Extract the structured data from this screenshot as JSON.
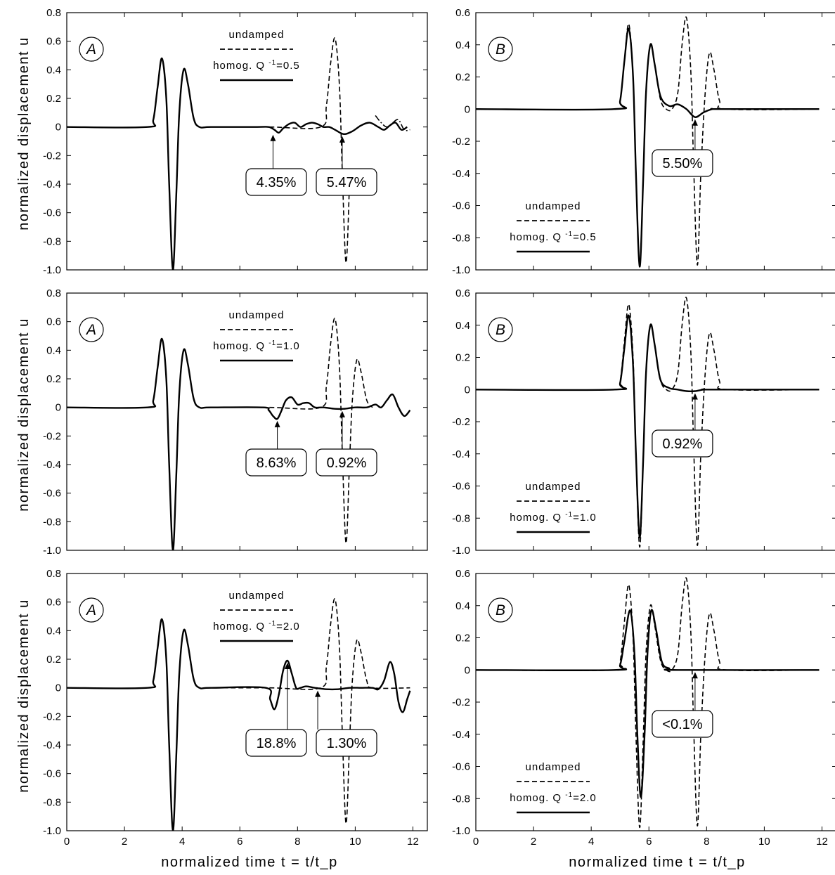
{
  "figure": {
    "xlabel_left": "normalized time t = t/t_p",
    "xlabel_right": "normalized time t = t/t_p",
    "ylabel": "normalized displacement u"
  },
  "chart_data": [
    {
      "type": "line",
      "panel": "A",
      "row": 1,
      "xlim": [
        0,
        12.5
      ],
      "ylim": [
        -1.0,
        0.8
      ],
      "xticks": [
        0,
        2,
        4,
        6,
        8,
        10,
        12
      ],
      "yticks": [
        0.8,
        0.6,
        0.4,
        0.2,
        0,
        -0.2,
        -0.4,
        -0.6,
        -0.8,
        -1.0
      ],
      "ytick_labels": [
        "0.8",
        "0.6",
        "0.4",
        "0.2",
        "0",
        "-0.2",
        "-0.4",
        "-0.6",
        "-0.8",
        "-1.0"
      ],
      "legend": {
        "undamped": "undamped",
        "damped": "homog. Q",
        "sup": "-1",
        "value": "=0.5",
        "placement": "top-center"
      },
      "series": [
        {
          "name": "undamped",
          "style": "dashed",
          "x": [
            0,
            2.8,
            3.0,
            3.15,
            3.3,
            3.45,
            3.55,
            3.68,
            3.8,
            3.9,
            4.05,
            4.2,
            4.4,
            4.6,
            5.0,
            7.0,
            8.8,
            9.0,
            9.15,
            9.3,
            9.45,
            9.55,
            9.68,
            9.8
          ],
          "y": [
            0,
            0,
            0.05,
            0.28,
            0.48,
            0.2,
            -0.4,
            -1.0,
            -0.45,
            0.1,
            0.4,
            0.3,
            0.06,
            0,
            0,
            0,
            0,
            0.15,
            0.45,
            0.62,
            0.3,
            -0.3,
            -0.95,
            -0.4
          ]
        },
        {
          "name": "damped",
          "style": "solid",
          "x": [
            0,
            2.8,
            3.0,
            3.15,
            3.3,
            3.45,
            3.55,
            3.68,
            3.8,
            3.9,
            4.05,
            4.2,
            4.4,
            4.6,
            5.0,
            6.6,
            7.0,
            7.2,
            7.35,
            7.5,
            7.7,
            7.9,
            8.1,
            8.3,
            8.5,
            8.7,
            8.9,
            9.1,
            9.3,
            9.6,
            9.9,
            10.2,
            10.5,
            10.8,
            11.0,
            11.2,
            11.4,
            11.6,
            11.8
          ],
          "y": [
            0,
            0,
            0.05,
            0.28,
            0.48,
            0.2,
            -0.4,
            -1.0,
            -0.45,
            0.1,
            0.4,
            0.3,
            0.06,
            0,
            0,
            0,
            0,
            -0.02,
            -0.04,
            -0.01,
            0.02,
            0.03,
            0.0,
            0.02,
            0.03,
            0.02,
            0.0,
            0.0,
            -0.02,
            -0.05,
            -0.03,
            0.01,
            0.03,
            0.0,
            -0.02,
            0.01,
            0.03,
            -0.02,
            0
          ]
        },
        {
          "name": "",
          "style": "dashdot",
          "x": [
            10.7,
            10.9,
            11.1,
            11.3,
            11.5,
            11.7,
            11.9
          ],
          "y": [
            0.08,
            0.03,
            0.0,
            0.03,
            0.05,
            -0.02,
            -0.02
          ]
        }
      ],
      "callouts": [
        {
          "text": "4.35%",
          "x": 7.15,
          "y": -0.04
        },
        {
          "text": "5.47%",
          "x": 9.55,
          "y": -0.05
        }
      ]
    },
    {
      "type": "line",
      "panel": "B",
      "row": 1,
      "xlim": [
        0,
        12.5
      ],
      "ylim": [
        -1.0,
        0.6
      ],
      "xticks": [
        0,
        2,
        4,
        6,
        8,
        10,
        12
      ],
      "yticks": [
        0.6,
        0.4,
        0.2,
        0,
        -0.2,
        -0.4,
        -0.6,
        -0.8,
        -1.0
      ],
      "ytick_labels": [
        "0.6",
        "0.4",
        "0.2",
        "0",
        "-0.2",
        "-0.4",
        "-0.6",
        "-0.8",
        "-1.0"
      ],
      "legend": {
        "undamped": "undamped",
        "damped": "homog. Q",
        "sup": "-1",
        "value": "=0.5",
        "placement": "bottom-left"
      },
      "series": [
        {
          "name": "undamped",
          "style": "dashed",
          "x": [
            0,
            4.8,
            5.0,
            5.15,
            5.3,
            5.45,
            5.55,
            5.68,
            5.8,
            5.9,
            6.05,
            6.2,
            6.4,
            6.6,
            6.8,
            7.0,
            7.15,
            7.3,
            7.45,
            7.55,
            7.68,
            7.8,
            7.95,
            8.1,
            8.25,
            8.45,
            8.7,
            11.9
          ],
          "y": [
            0,
            0,
            0.05,
            0.3,
            0.53,
            0.2,
            -0.4,
            -0.98,
            -0.45,
            0.1,
            0.4,
            0.28,
            0.06,
            0.0,
            0.0,
            0.1,
            0.4,
            0.57,
            0.25,
            -0.35,
            -0.97,
            -0.4,
            0.1,
            0.35,
            0.25,
            0.05,
            0,
            0
          ]
        },
        {
          "name": "damped",
          "style": "solid",
          "x": [
            0,
            4.8,
            5.0,
            5.15,
            5.3,
            5.45,
            5.55,
            5.68,
            5.8,
            5.9,
            6.05,
            6.2,
            6.4,
            6.7,
            7.0,
            7.3,
            7.6,
            7.9,
            8.2,
            8.5,
            11.9
          ],
          "y": [
            0,
            0,
            0.05,
            0.3,
            0.5,
            0.2,
            -0.4,
            -0.98,
            -0.45,
            0.1,
            0.4,
            0.28,
            0.08,
            0.02,
            0.03,
            0.0,
            -0.05,
            -0.02,
            0.0,
            0,
            0
          ]
        }
      ],
      "callouts": [
        {
          "text": "5.50%",
          "x": 7.6,
          "y": -0.05
        }
      ]
    },
    {
      "type": "line",
      "panel": "A",
      "row": 2,
      "xlim": [
        0,
        12.5
      ],
      "ylim": [
        -1.0,
        0.8
      ],
      "xticks": [
        0,
        2,
        4,
        6,
        8,
        10,
        12
      ],
      "yticks": [
        0.8,
        0.6,
        0.4,
        0.2,
        0,
        -0.2,
        -0.4,
        -0.6,
        -0.8,
        -1.0
      ],
      "ytick_labels": [
        "0.8",
        "0.6",
        "0.4",
        "0.2",
        "0",
        "-0.2",
        "-0.4",
        "-0.6",
        "-0.8",
        "-1.0"
      ],
      "legend": {
        "undamped": "undamped",
        "damped": "homog. Q",
        "sup": "-1",
        "value": "=1.0",
        "placement": "top-center"
      },
      "series": [
        {
          "name": "undamped",
          "style": "dashed",
          "x": [
            0,
            2.8,
            3.0,
            3.15,
            3.3,
            3.45,
            3.55,
            3.68,
            3.8,
            3.9,
            4.05,
            4.2,
            4.4,
            4.6,
            5.0,
            7.0,
            8.8,
            9.0,
            9.15,
            9.3,
            9.45,
            9.55,
            9.68,
            9.8,
            9.9,
            10.05,
            10.2,
            10.4,
            10.6
          ],
          "y": [
            0,
            0,
            0.05,
            0.28,
            0.48,
            0.2,
            -0.4,
            -1.0,
            -0.45,
            0.1,
            0.4,
            0.3,
            0.06,
            0,
            0,
            0,
            0,
            0.15,
            0.45,
            0.62,
            0.3,
            -0.3,
            -0.95,
            -0.4,
            0.05,
            0.33,
            0.25,
            0.05,
            0.0
          ]
        },
        {
          "name": "damped",
          "style": "solid",
          "x": [
            0,
            2.8,
            3.0,
            3.15,
            3.3,
            3.45,
            3.55,
            3.68,
            3.8,
            3.9,
            4.05,
            4.2,
            4.4,
            4.6,
            5.0,
            6.8,
            7.0,
            7.15,
            7.3,
            7.45,
            7.6,
            7.8,
            8.0,
            8.2,
            8.4,
            8.6,
            8.9,
            9.3,
            9.6,
            10.0,
            10.4,
            10.7,
            10.9,
            11.1,
            11.3,
            11.5,
            11.7,
            11.9
          ],
          "y": [
            0,
            0,
            0.05,
            0.28,
            0.48,
            0.2,
            -0.4,
            -1.0,
            -0.45,
            0.1,
            0.4,
            0.3,
            0.06,
            0,
            0,
            0,
            -0.02,
            -0.06,
            -0.08,
            -0.02,
            0.05,
            0.07,
            0.02,
            0.03,
            0.03,
            0.0,
            0.0,
            -0.01,
            -0.01,
            0.0,
            0.0,
            0.02,
            0.0,
            0.05,
            0.09,
            0.0,
            -0.06,
            -0.02
          ]
        }
      ],
      "callouts": [
        {
          "text": "8.63%",
          "x": 7.3,
          "y": -0.08
        },
        {
          "text": "0.92%",
          "x": 9.55,
          "y": -0.01
        }
      ]
    },
    {
      "type": "line",
      "panel": "B",
      "row": 2,
      "xlim": [
        0,
        12.5
      ],
      "ylim": [
        -1.0,
        0.6
      ],
      "xticks": [
        0,
        2,
        4,
        6,
        8,
        10,
        12
      ],
      "yticks": [
        0.6,
        0.4,
        0.2,
        0,
        -0.2,
        -0.4,
        -0.6,
        -0.8,
        -1.0
      ],
      "ytick_labels": [
        "0.6",
        "0.4",
        "0.2",
        "0",
        "-0.2",
        "-0.4",
        "-0.6",
        "-0.8",
        "-1.0"
      ],
      "legend": {
        "undamped": "undamped",
        "damped": "homog. Q",
        "sup": "-1",
        "value": "=1.0",
        "placement": "bottom-left"
      },
      "series": [
        {
          "name": "undamped",
          "style": "dashed",
          "x": [
            0,
            4.8,
            5.0,
            5.15,
            5.3,
            5.45,
            5.55,
            5.68,
            5.8,
            5.9,
            6.05,
            6.2,
            6.4,
            6.6,
            6.8,
            7.0,
            7.15,
            7.3,
            7.45,
            7.55,
            7.68,
            7.8,
            7.95,
            8.1,
            8.25,
            8.45,
            8.7,
            11.9
          ],
          "y": [
            0,
            0,
            0.05,
            0.3,
            0.53,
            0.2,
            -0.4,
            -0.98,
            -0.45,
            0.1,
            0.4,
            0.28,
            0.06,
            0.0,
            0.0,
            0.1,
            0.4,
            0.57,
            0.25,
            -0.35,
            -0.97,
            -0.4,
            0.1,
            0.35,
            0.25,
            0.05,
            0,
            0
          ]
        },
        {
          "name": "damped",
          "style": "solid",
          "x": [
            0,
            4.8,
            5.0,
            5.15,
            5.3,
            5.45,
            5.55,
            5.68,
            5.8,
            5.9,
            6.05,
            6.2,
            6.4,
            6.7,
            7.0,
            7.3,
            7.6,
            7.9,
            8.2,
            11.9
          ],
          "y": [
            0,
            0,
            0.04,
            0.26,
            0.46,
            0.15,
            -0.4,
            -0.92,
            -0.45,
            0.1,
            0.4,
            0.28,
            0.06,
            0.01,
            0.0,
            -0.01,
            -0.01,
            0.0,
            0,
            0
          ]
        }
      ],
      "callouts": [
        {
          "text": "0.92%",
          "x": 7.6,
          "y": -0.01
        }
      ]
    },
    {
      "type": "line",
      "panel": "A",
      "row": 3,
      "xlim": [
        0,
        12.5
      ],
      "ylim": [
        -1.0,
        0.8
      ],
      "xticks": [
        0,
        2,
        4,
        6,
        8,
        10,
        12
      ],
      "yticks": [
        0.8,
        0.6,
        0.4,
        0.2,
        0,
        -0.2,
        -0.4,
        -0.6,
        -0.8,
        -1.0
      ],
      "ytick_labels": [
        "0.8",
        "0.6",
        "0.4",
        "0.2",
        "0",
        "-0.2",
        "-0.4",
        "-0.6",
        "-0.8",
        "-1.0"
      ],
      "legend": {
        "undamped": "undamped",
        "damped": "homog. Q",
        "sup": "-1",
        "value": "=2.0",
        "placement": "top-center"
      },
      "series": [
        {
          "name": "undamped",
          "style": "dashed",
          "x": [
            0,
            2.8,
            3.0,
            3.15,
            3.3,
            3.45,
            3.55,
            3.68,
            3.8,
            3.9,
            4.05,
            4.2,
            4.4,
            4.6,
            5.0,
            7.0,
            8.8,
            9.0,
            9.15,
            9.3,
            9.45,
            9.55,
            9.68,
            9.8,
            9.9,
            10.05,
            10.2,
            10.4,
            10.6,
            11.9
          ],
          "y": [
            0,
            0,
            0.05,
            0.28,
            0.48,
            0.2,
            -0.4,
            -1.0,
            -0.45,
            0.1,
            0.4,
            0.3,
            0.06,
            0,
            0,
            0,
            0,
            0.15,
            0.45,
            0.62,
            0.3,
            -0.3,
            -0.95,
            -0.4,
            0.05,
            0.33,
            0.25,
            0.05,
            0.0,
            0
          ]
        },
        {
          "name": "damped",
          "style": "solid",
          "x": [
            0,
            2.8,
            3.0,
            3.15,
            3.3,
            3.45,
            3.55,
            3.68,
            3.8,
            3.9,
            4.05,
            4.2,
            4.4,
            4.6,
            5.0,
            6.9,
            7.05,
            7.2,
            7.35,
            7.5,
            7.65,
            7.8,
            7.95,
            8.1,
            8.3,
            8.6,
            9.0,
            9.4,
            9.8,
            10.2,
            10.6,
            10.8,
            11.0,
            11.2,
            11.35,
            11.5,
            11.65,
            11.8,
            11.9
          ],
          "y": [
            0,
            0,
            0.05,
            0.28,
            0.48,
            0.2,
            -0.4,
            -1.0,
            -0.45,
            0.1,
            0.4,
            0.3,
            0.06,
            0,
            0,
            0,
            -0.08,
            -0.15,
            -0.05,
            0.12,
            0.19,
            0.1,
            0.0,
            0.0,
            0.01,
            0.0,
            -0.01,
            -0.01,
            0.0,
            0.0,
            0.0,
            -0.01,
            0.05,
            0.18,
            0.1,
            -0.1,
            -0.17,
            -0.08,
            -0.02
          ]
        }
      ],
      "callouts": [
        {
          "text": "18.8%",
          "x": 7.65,
          "y": 0.19
        },
        {
          "text": "1.30%",
          "x": 8.7,
          "y": -0.005
        }
      ]
    },
    {
      "type": "line",
      "panel": "B",
      "row": 3,
      "xlim": [
        0,
        12.5
      ],
      "ylim": [
        -1.0,
        0.6
      ],
      "xticks": [
        0,
        2,
        4,
        6,
        8,
        10,
        12
      ],
      "yticks": [
        0.6,
        0.4,
        0.2,
        0,
        -0.2,
        -0.4,
        -0.6,
        -0.8,
        -1.0
      ],
      "ytick_labels": [
        "0.6",
        "0.4",
        "0.2",
        "0",
        "-0.2",
        "-0.4",
        "-0.6",
        "-0.8",
        "-1.0"
      ],
      "legend": {
        "undamped": "undamped",
        "damped": "homog. Q",
        "sup": "-1",
        "value": "=2.0",
        "placement": "bottom-left"
      },
      "series": [
        {
          "name": "undamped",
          "style": "dashed",
          "x": [
            0,
            4.8,
            5.0,
            5.15,
            5.3,
            5.45,
            5.55,
            5.68,
            5.8,
            5.9,
            6.05,
            6.2,
            6.4,
            6.6,
            6.8,
            7.0,
            7.15,
            7.3,
            7.45,
            7.55,
            7.68,
            7.8,
            7.95,
            8.1,
            8.25,
            8.45,
            8.7,
            11.9
          ],
          "y": [
            0,
            0,
            0.05,
            0.3,
            0.53,
            0.2,
            -0.4,
            -0.98,
            -0.45,
            0.1,
            0.4,
            0.28,
            0.06,
            0.0,
            0.0,
            0.1,
            0.4,
            0.57,
            0.25,
            -0.35,
            -0.97,
            -0.4,
            0.1,
            0.35,
            0.25,
            0.05,
            0,
            0
          ]
        },
        {
          "name": "damped",
          "style": "solid",
          "x": [
            0,
            4.8,
            5.0,
            5.15,
            5.35,
            5.5,
            5.6,
            5.72,
            5.85,
            5.95,
            6.08,
            6.25,
            6.45,
            6.7,
            7.0,
            11.9
          ],
          "y": [
            0,
            0,
            0.03,
            0.18,
            0.37,
            0.1,
            -0.4,
            -0.79,
            -0.4,
            0.1,
            0.37,
            0.25,
            0.05,
            0.01,
            0,
            0
          ]
        }
      ],
      "callouts": [
        {
          "text": "<0.1%",
          "x": 7.6,
          "y": 0.0
        }
      ]
    }
  ]
}
